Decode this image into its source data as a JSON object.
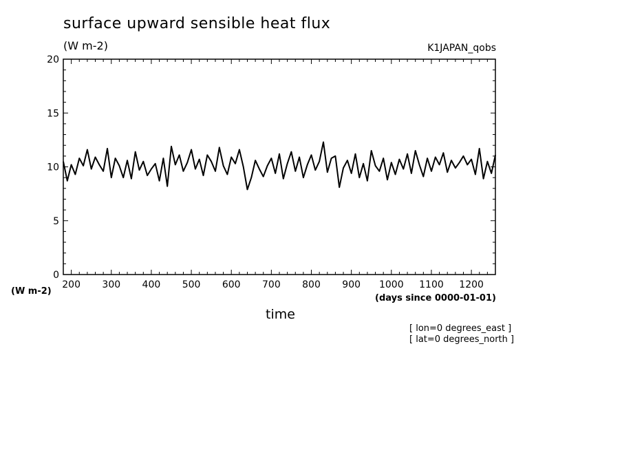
{
  "header": {
    "title": "surface upward sensible heat flux",
    "units_top": "(W m-2)",
    "dataset": "K1JAPAN_qobs"
  },
  "axes": {
    "y_units": "(W m-2)",
    "x_units": "(days since 0000-01-01)",
    "x_title": "time"
  },
  "notes": {
    "lon": "[ lon=0 degrees_east ]",
    "lat": "[ lat=0 degrees_north ]"
  },
  "chart_data": {
    "type": "line",
    "xlim": [
      180,
      1260
    ],
    "ylim": [
      0,
      20
    ],
    "x_ticks": [
      200,
      300,
      400,
      500,
      600,
      700,
      800,
      900,
      1000,
      1100,
      1200
    ],
    "y_ticks": [
      0,
      5,
      10,
      15,
      20
    ],
    "grid": false,
    "series": [
      {
        "color": "#000000",
        "x": [
          180,
          190,
          200,
          210,
          220,
          230,
          240,
          250,
          260,
          270,
          280,
          290,
          300,
          310,
          320,
          330,
          340,
          350,
          360,
          370,
          380,
          390,
          400,
          410,
          420,
          430,
          440,
          450,
          460,
          470,
          480,
          490,
          500,
          510,
          520,
          530,
          540,
          550,
          560,
          570,
          580,
          590,
          600,
          610,
          620,
          630,
          640,
          650,
          660,
          670,
          680,
          690,
          700,
          710,
          720,
          730,
          740,
          750,
          760,
          770,
          780,
          790,
          800,
          810,
          820,
          830,
          840,
          850,
          860,
          870,
          880,
          890,
          900,
          910,
          920,
          930,
          940,
          950,
          960,
          970,
          980,
          990,
          1000,
          1010,
          1020,
          1030,
          1040,
          1050,
          1060,
          1070,
          1080,
          1090,
          1100,
          1110,
          1120,
          1130,
          1140,
          1150,
          1160,
          1170,
          1180,
          1190,
          1200,
          1210,
          1220,
          1230,
          1240,
          1250,
          1260
        ],
        "values": [
          10.5,
          8.7,
          10.2,
          9.3,
          10.8,
          10.1,
          11.6,
          9.8,
          10.9,
          10.2,
          9.6,
          11.7,
          9.0,
          10.8,
          10.1,
          9.0,
          10.6,
          8.9,
          11.4,
          9.7,
          10.5,
          9.2,
          9.8,
          10.3,
          8.7,
          10.8,
          8.2,
          11.9,
          10.2,
          11.1,
          9.6,
          10.4,
          11.6,
          9.8,
          10.7,
          9.2,
          11.1,
          10.5,
          9.6,
          11.8,
          10.1,
          9.3,
          10.9,
          10.3,
          11.6,
          10.0,
          7.9,
          9.0,
          10.6,
          9.8,
          9.1,
          10.1,
          10.8,
          9.4,
          11.2,
          8.9,
          10.3,
          11.4,
          9.6,
          10.9,
          9.0,
          10.2,
          11.1,
          9.7,
          10.5,
          12.3,
          9.5,
          10.8,
          11.0,
          8.1,
          9.9,
          10.6,
          9.4,
          11.2,
          9.0,
          10.3,
          8.7,
          11.5,
          10.1,
          9.6,
          10.8,
          8.8,
          10.4,
          9.3,
          10.7,
          9.8,
          11.2,
          9.4,
          11.5,
          10.2,
          9.1,
          10.8,
          9.6,
          10.9,
          10.2,
          11.3,
          9.5,
          10.6,
          9.9,
          10.4,
          11.0,
          10.2,
          10.7,
          9.3,
          11.7,
          8.9,
          10.5,
          9.4,
          11.1
        ]
      }
    ]
  }
}
